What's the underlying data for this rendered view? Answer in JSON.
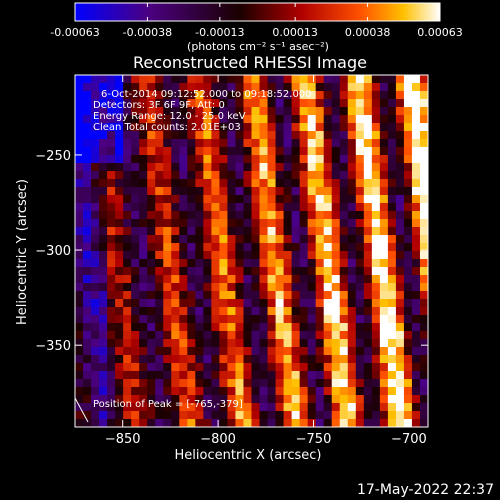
{
  "chart_data": {
    "type": "heatmap",
    "title": "Reconstructed RHESSI Image",
    "xlabel": "Heliocentric X (arcsec)",
    "ylabel": "Heliocentric Y (arcsec)",
    "xlim": [
      -875,
      -690
    ],
    "ylim": [
      -393,
      -208
    ],
    "x_ticks": [
      -850,
      -800,
      -750,
      -700
    ],
    "x_tick_labels": [
      "−850",
      "−800",
      "−750",
      "−700"
    ],
    "y_ticks": [
      -250,
      -300,
      -350
    ],
    "y_tick_labels": [
      "−250",
      "−300",
      "−350"
    ],
    "colorbar": {
      "range": [
        -0.00063,
        0.00063
      ],
      "tick_labels": [
        "-0.00063",
        "-0.00038",
        "-0.00013",
        "0.00013",
        "0.00038",
        "0.00063"
      ],
      "units": "(photons cm⁻² s⁻¹ asec⁻²)",
      "colors": [
        "#0000ff",
        "#4b0082",
        "#1a0000",
        "#b00000",
        "#ff5000",
        "#ffc000",
        "#ffffff"
      ]
    },
    "annotations": [
      "6-Oct-2014 09:12:52.000 to 09:18:52.000",
      "Detectors: 3F 6F 9F, Att: 0",
      "Energy Range: 12.0 - 25.0 keV",
      "Clean     Total counts: 2.01E+03"
    ],
    "peak_label": "Position of Peak = [-765,-379]"
  },
  "timestamp": "17-May-2022 22:37"
}
